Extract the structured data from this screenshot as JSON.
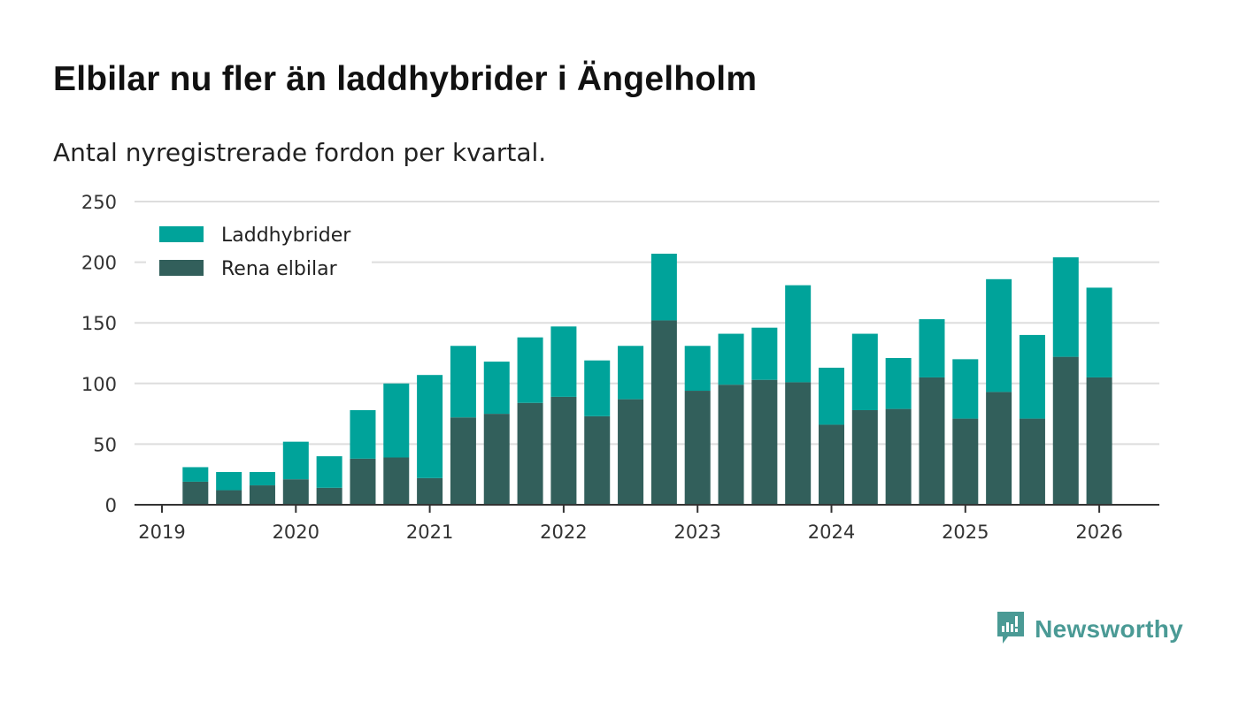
{
  "title": "Elbilar nu fler än laddhybrider i Ängelholm",
  "subtitle": "Antal nyregistrerade fordon per kvartal.",
  "brand": {
    "name": "Newsworthy",
    "color": "#4a9a95",
    "icon": "newsworthy-logo-icon"
  },
  "colors": {
    "phev": "#00a39a",
    "bev": "#325f5b",
    "grid": "#dddddd",
    "axis": "#333333"
  },
  "chart_data": {
    "type": "bar",
    "stacked": true,
    "title": "Elbilar nu fler än laddhybrider i Ängelholm",
    "subtitle": "Antal nyregistrerade fordon per kvartal.",
    "xlabel": "",
    "ylabel": "",
    "ylim": [
      0,
      250
    ],
    "yticks": [
      0,
      50,
      100,
      150,
      200,
      250
    ],
    "xticks": [
      "2019",
      "2020",
      "2021",
      "2022",
      "2023",
      "2024",
      "2025",
      "2026"
    ],
    "legend_position": "top-left",
    "grid": true,
    "categories": [
      "2019 Q2",
      "2019 Q3",
      "2019 Q4",
      "2020 Q1",
      "2020 Q2",
      "2020 Q3",
      "2020 Q4",
      "2021 Q1",
      "2021 Q2",
      "2021 Q3",
      "2021 Q4",
      "2022 Q1",
      "2022 Q2",
      "2022 Q3",
      "2022 Q4",
      "2023 Q1",
      "2023 Q2",
      "2023 Q3",
      "2023 Q4",
      "2024 Q1",
      "2024 Q2",
      "2024 Q3",
      "2024 Q4",
      "2025 Q1",
      "2025 Q2",
      "2025 Q3",
      "2025 Q4",
      "2026 Q1"
    ],
    "series": [
      {
        "name": "Rena elbilar",
        "values": [
          19,
          12,
          16,
          21,
          14,
          38,
          39,
          22,
          72,
          75,
          84,
          89,
          73,
          87,
          152,
          94,
          99,
          103,
          101,
          66,
          78,
          79,
          105,
          71,
          93,
          71,
          122,
          105
        ]
      },
      {
        "name": "Laddhybrider",
        "values": [
          12,
          15,
          11,
          31,
          26,
          40,
          61,
          85,
          59,
          43,
          54,
          58,
          46,
          44,
          55,
          37,
          42,
          43,
          80,
          47,
          63,
          42,
          48,
          49,
          93,
          69,
          82,
          74
        ]
      }
    ]
  }
}
